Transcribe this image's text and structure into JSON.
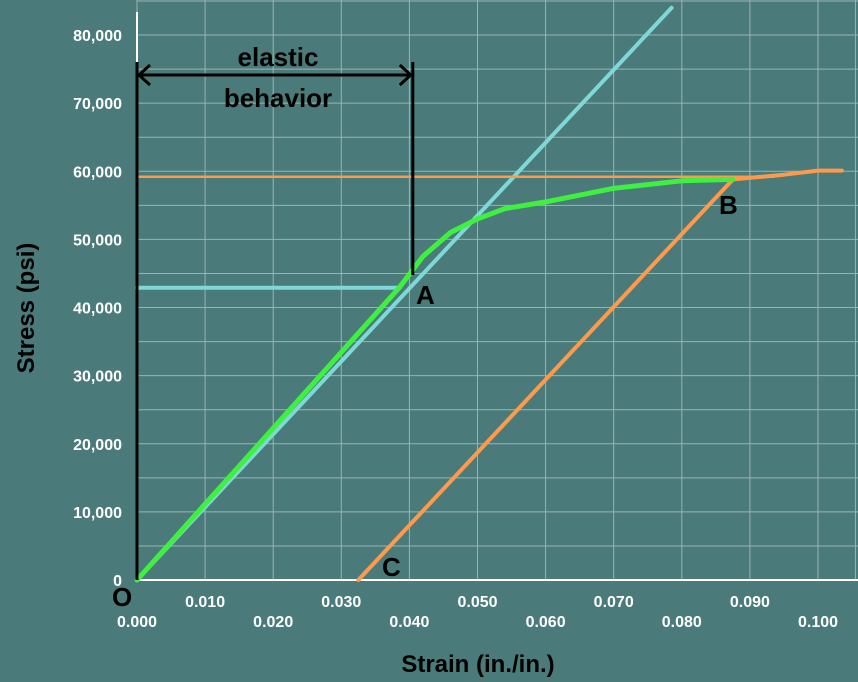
{
  "chart_data": {
    "type": "line",
    "title": "",
    "xlabel": "Strain (in./in.)",
    "ylabel": "Stress (psi)",
    "xlim": [
      0,
      0.1
    ],
    "ylim": [
      0,
      80000
    ],
    "grid": true,
    "x_ticks_row1": [
      "0.010",
      "0.030",
      "0.050",
      "0.070",
      "0.090"
    ],
    "x_ticks_row2": [
      "0.000",
      "0.020",
      "0.040",
      "0.060",
      "0.080",
      "0.100"
    ],
    "y_ticks": [
      "0",
      "10,000",
      "20,000",
      "30,000",
      "40,000",
      "50,000",
      "60,000",
      "70,000",
      "80,000"
    ],
    "series": [
      {
        "role": "stress-strain curve",
        "color": "#40f040",
        "points": [
          [
            0,
            0
          ],
          [
            0.0385,
            42900
          ],
          [
            0.042,
            47500
          ],
          [
            0.046,
            51000
          ],
          [
            0.05,
            53000
          ],
          [
            0.054,
            54500
          ],
          [
            0.06,
            55500
          ],
          [
            0.07,
            57500
          ],
          [
            0.08,
            58600
          ],
          [
            0.0875,
            58800
          ]
        ]
      },
      {
        "role": "elastic extension line",
        "color": "#7fd8d8",
        "points": [
          [
            0,
            0
          ],
          [
            0.0785,
            84000
          ]
        ]
      },
      {
        "role": "proportional limit line",
        "color": "#7fd8d8",
        "points": [
          [
            0,
            42900
          ],
          [
            0.0385,
            42900
          ]
        ]
      },
      {
        "role": "unloading line B to C",
        "color": "#ff9a4a",
        "points": [
          [
            0.0325,
            0
          ],
          [
            0.0875,
            58800
          ]
        ]
      },
      {
        "role": "yield stress level",
        "color": "#ff9a4a",
        "points": [
          [
            0,
            59200
          ],
          [
            0.0935,
            59200
          ]
        ]
      },
      {
        "role": "curve beyond B",
        "color": "#ff9a4a",
        "points": [
          [
            0.0875,
            58800
          ],
          [
            0.095,
            59500
          ],
          [
            0.1,
            60100
          ],
          [
            0.1035,
            60100
          ]
        ]
      }
    ],
    "annotations": {
      "elastic_line1": "elastic",
      "elastic_line2": "behavior",
      "elastic_span": [
        0,
        0.0405
      ],
      "point_O": "O",
      "point_A": "A",
      "point_B": "B",
      "point_C": "C"
    }
  }
}
